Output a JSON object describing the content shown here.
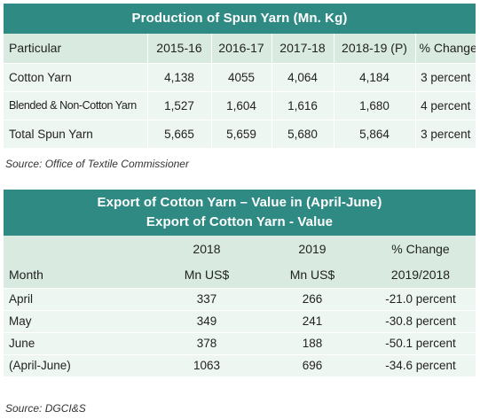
{
  "production": {
    "title": "Production of Spun Yarn (Mn. Kg)",
    "headers": [
      "Particular",
      "2015-16",
      "2016-17",
      "2017-18",
      "2018-19 (P)",
      "% Change"
    ],
    "rows": [
      [
        "Cotton Yarn",
        "4,138",
        "4055",
        "4,064",
        "4,184",
        "3 percent"
      ],
      [
        "Blended & Non-Cotton Yarn",
        "1,527",
        "1,604",
        "1,616",
        "1,680",
        "4 percent"
      ],
      [
        "Total Spun Yarn",
        "5,665",
        "5,659",
        "5,680",
        "5,864",
        "3 percent"
      ]
    ],
    "source": "Source: Office of Textile Commissioner"
  },
  "export": {
    "title_line1": "Export of Cotton Yarn – Value in (April-June)",
    "title_line2": "Export of Cotton Yarn - Value",
    "header_row1": [
      "",
      "2018",
      "2019",
      "% Change"
    ],
    "header_row2": [
      "Month",
      "Mn US$",
      "Mn US$",
      "2019/2018"
    ],
    "rows": [
      [
        "April",
        "337",
        "266",
        "-21.0 percent"
      ],
      [
        "May",
        "349",
        "241",
        "-30.8 percent"
      ],
      [
        "June",
        "378",
        "188",
        "-50.1 percent"
      ],
      [
        "(April-June)",
        "1063",
        "696",
        "-34.6 percent"
      ]
    ],
    "source": "Source: DGCI&S"
  },
  "colors": {
    "title_bar": "#2f8a84",
    "header_row": "#d9ebe0",
    "data_row": "#eef6f1"
  }
}
